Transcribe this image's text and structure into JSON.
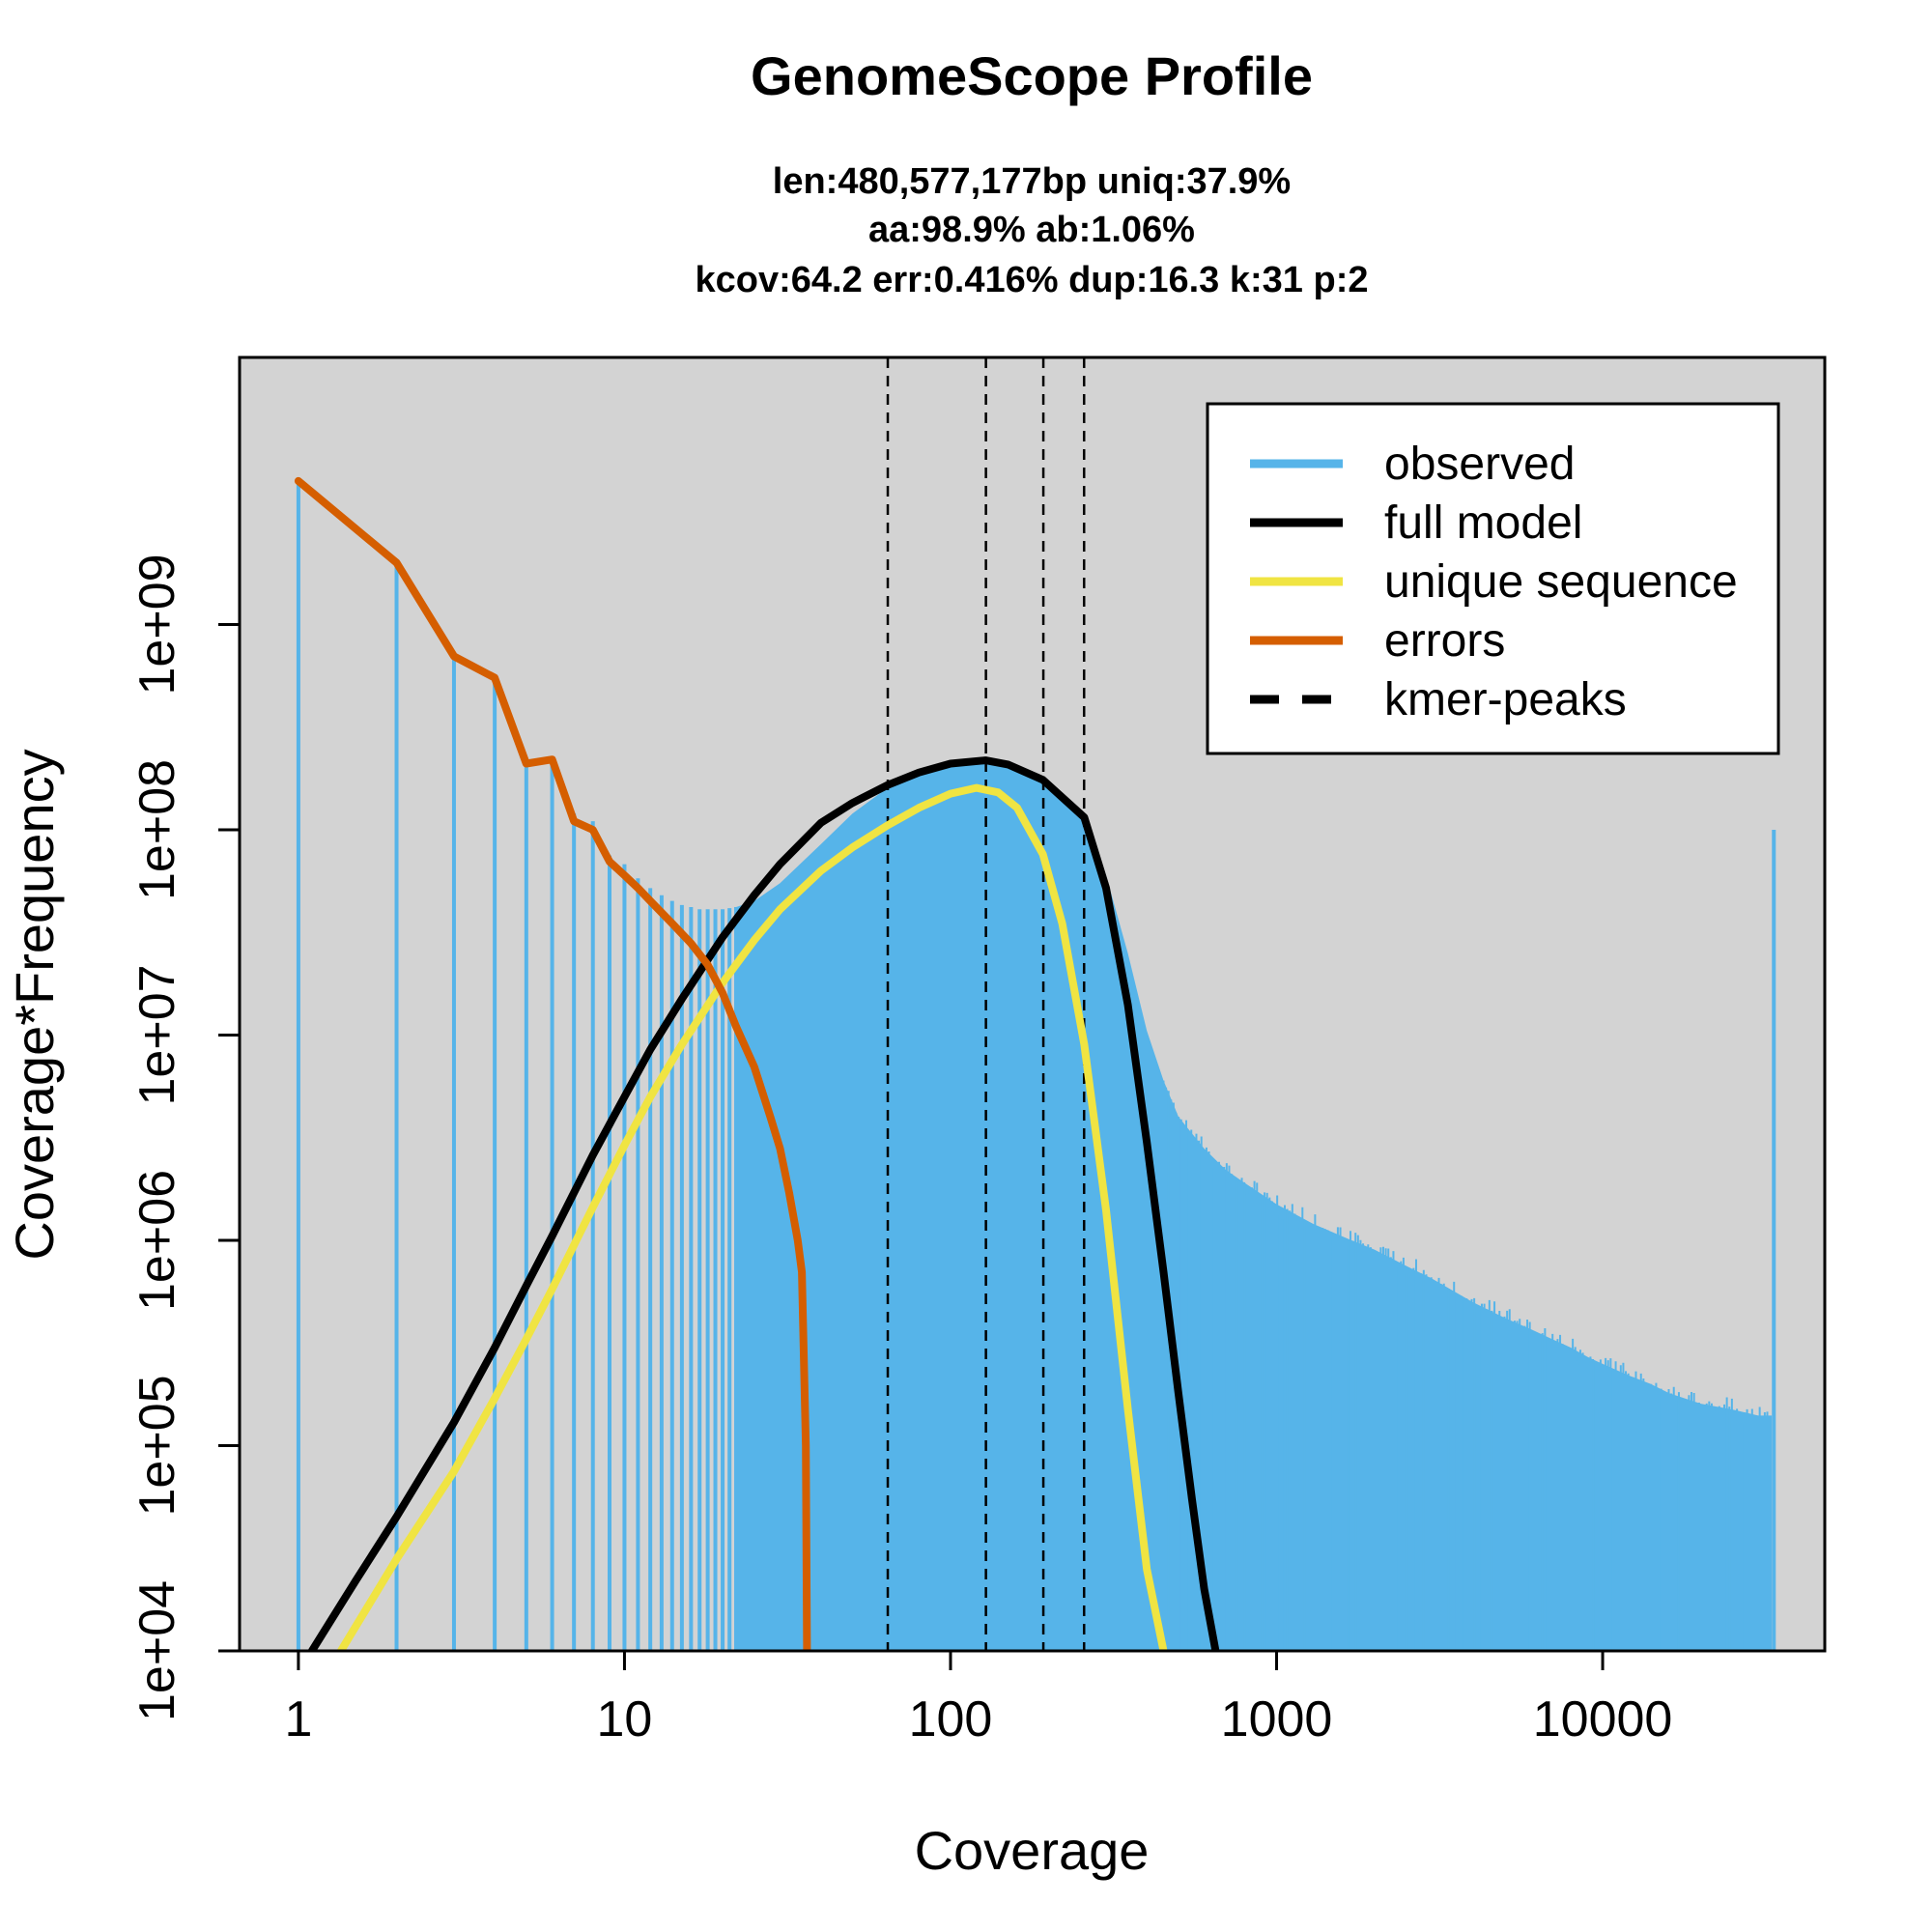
{
  "chart_data": {
    "type": "area",
    "title": "GenomeScope Profile",
    "subtitle_lines": [
      "len:480,577,177bp uniq:37.9%",
      "aa:98.9% ab:1.06%",
      "kcov:64.2 err:0.416%  dup:16.3  k:31 p:2"
    ],
    "xlabel": "Coverage",
    "ylabel": "Coverage*Frequency",
    "x_scale": "log",
    "y_scale": "log",
    "xlim": [
      0.66,
      48000
    ],
    "ylim": [
      10000,
      20000000000
    ],
    "x_ticks": [
      {
        "value": 1,
        "label": "1"
      },
      {
        "value": 10,
        "label": "10"
      },
      {
        "value": 100,
        "label": "100"
      },
      {
        "value": 1000,
        "label": "1000"
      },
      {
        "value": 10000,
        "label": "10000"
      }
    ],
    "y_ticks": [
      {
        "value": 10000,
        "label": "1e+04"
      },
      {
        "value": 100000,
        "label": "1e+05"
      },
      {
        "value": 1000000,
        "label": "1e+06"
      },
      {
        "value": 10000000,
        "label": "1e+07"
      },
      {
        "value": 100000000,
        "label": "1e+08"
      },
      {
        "value": 1000000000,
        "label": "1e+09"
      }
    ],
    "background": "#d3d3d3",
    "legend": {
      "position": "top-right",
      "entries": [
        {
          "label": "observed",
          "color": "#56b4e9",
          "style": "solid"
        },
        {
          "label": "full model",
          "color": "#000000",
          "style": "solid"
        },
        {
          "label": "unique sequence",
          "color": "#f0e442",
          "style": "solid"
        },
        {
          "label": "errors",
          "color": "#d55e00",
          "style": "solid"
        },
        {
          "label": "kmer-peaks",
          "color": "#000000",
          "style": "dashed"
        }
      ]
    },
    "kmer_peaks": [
      64.2,
      128.4,
      192.6,
      256.8
    ],
    "observed": {
      "name": "observed",
      "color": "#56b4e9",
      "discrete_x": [
        1,
        2,
        3,
        4,
        5,
        6,
        7,
        8,
        9,
        10,
        11,
        12,
        13,
        14,
        15,
        16,
        17,
        18,
        19,
        20,
        21,
        22
      ],
      "discrete_y": [
        5000000000,
        2000000000,
        700000000,
        550000000,
        210000000,
        220000000,
        120000000,
        110000000,
        75000000,
        68000000,
        58000000,
        52000000,
        48000000,
        45000000,
        43000000,
        42000000,
        41000000,
        41000000,
        41000000,
        41000000,
        41500000,
        42000000
      ],
      "envelope_x": [
        22,
        25,
        30,
        40,
        50,
        64,
        80,
        100,
        128,
        150,
        192,
        257,
        300,
        350,
        400,
        450,
        500,
        600,
        700,
        800,
        1000,
        1300,
        1700,
        2000,
        2500,
        3000,
        4000,
        5000,
        6000,
        7000,
        8000,
        9000,
        10000,
        12000,
        14000,
        16000,
        20000,
        25000,
        30000,
        33000
      ],
      "envelope_y": [
        42000000,
        45000000,
        55000000,
        85000000,
        120000000,
        160000000,
        195000000,
        215000000,
        220000000,
        205000000,
        175000000,
        120000000,
        60000000,
        25000000,
        10500000,
        6000000,
        4000000,
        2800000,
        2200000,
        1900000,
        1500000,
        1200000,
        1000000,
        900000,
        750000,
        650000,
        500000,
        420000,
        370000,
        330000,
        300000,
        270000,
        250000,
        220000,
        200000,
        180000,
        160000,
        150000,
        140000,
        140000
      ],
      "spike": {
        "x": 33500,
        "y": 100000000
      }
    },
    "series": [
      {
        "name": "full model",
        "color": "#000000",
        "x": [
          1.1,
          1.5,
          2,
          3,
          4,
          5,
          6,
          8,
          10,
          12,
          15,
          20,
          25,
          30,
          40,
          50,
          64,
          80,
          100,
          128,
          150,
          192,
          257,
          300,
          350,
          400,
          450,
          500,
          550,
          600,
          650
        ],
        "y": [
          10000,
          22000,
          45000,
          130000,
          300000,
          600000,
          1050000,
          2600000,
          5000000,
          8500000,
          15000000,
          30000000,
          48000000,
          68000000,
          108000000,
          135000000,
          165000000,
          190000000,
          210000000,
          218000000,
          208000000,
          175000000,
          115000000,
          52000000,
          14000000,
          3000000,
          700000,
          180000,
          55000,
          20000,
          10000
        ]
      },
      {
        "name": "unique sequence",
        "color": "#f0e442",
        "x": [
          1.35,
          2,
          3,
          4,
          5,
          6,
          8,
          10,
          12,
          15,
          20,
          25,
          30,
          40,
          50,
          64,
          80,
          100,
          120,
          140,
          160,
          192,
          220,
          257,
          300,
          350,
          400,
          450
        ],
        "y": [
          10000,
          28000,
          75000,
          170000,
          330000,
          580000,
          1450000,
          2900000,
          5000000,
          9000000,
          18000000,
          29000000,
          41000000,
          63000000,
          82000000,
          105000000,
          128000000,
          150000000,
          160000000,
          152000000,
          128000000,
          76000000,
          35000000,
          9000000,
          1400000,
          150000,
          25000,
          10000
        ]
      },
      {
        "name": "errors",
        "color": "#d55e00",
        "x": [
          1,
          2,
          3,
          4,
          5,
          6,
          7,
          8,
          9,
          10,
          11,
          12,
          14,
          16,
          18,
          20,
          22,
          25,
          28,
          30,
          32,
          34,
          35,
          36,
          36.3
        ],
        "y": [
          5000000000,
          2000000000,
          700000000,
          550000000,
          210000000,
          220000000,
          110000000,
          100000000,
          70000000,
          60000000,
          52000000,
          45000000,
          35000000,
          28000000,
          22000000,
          16000000,
          11000000,
          7000000,
          4000000,
          2800000,
          1700000,
          1000000,
          700000,
          100000,
          10000
        ]
      }
    ]
  }
}
